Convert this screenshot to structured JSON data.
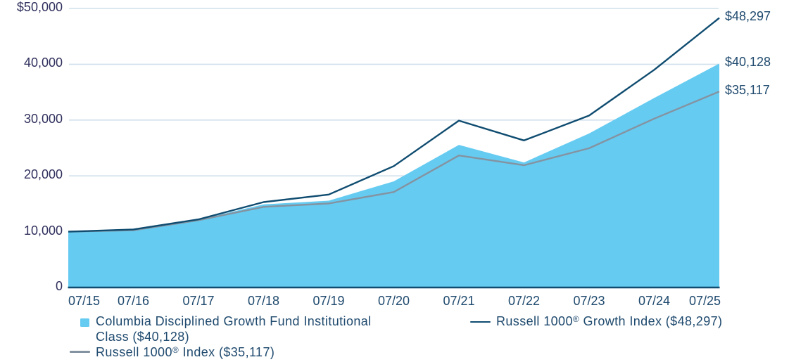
{
  "chart_data": {
    "type": "area",
    "categories": [
      "07/15",
      "07/16",
      "07/17",
      "07/18",
      "07/19",
      "07/20",
      "07/21",
      "07/22",
      "07/23",
      "07/24",
      "07/25"
    ],
    "series": [
      {
        "name": "Columbia Disciplined Growth Fund Institutional Class ($40,128)",
        "type": "area",
        "color": "#66cbf1",
        "end_label": "$40,128",
        "values": [
          10000,
          10300,
          12150,
          14900,
          15550,
          19020,
          25550,
          22400,
          27600,
          33950,
          40128
        ]
      },
      {
        "name": "Russell 1000® Growth Index ($48,297)",
        "type": "line",
        "color": "#0f4c70",
        "end_label": "$48,297",
        "values": [
          10000,
          10400,
          12200,
          15300,
          16650,
          21750,
          29900,
          26350,
          30800,
          39000,
          48297
        ]
      },
      {
        "name": "Russell 1000® Index ($35,117)",
        "type": "line",
        "color": "#8493a1",
        "end_label": "$35,117",
        "values": [
          10000,
          10250,
          12050,
          14450,
          15050,
          17100,
          23650,
          21900,
          24950,
          30250,
          35117
        ]
      }
    ],
    "y_axis": {
      "range": [
        0,
        50000
      ],
      "ticks": [
        {
          "value": 0,
          "label": "0"
        },
        {
          "value": 10000,
          "label": "10,000"
        },
        {
          "value": 20000,
          "label": "20,000"
        },
        {
          "value": 30000,
          "label": "30,000"
        },
        {
          "value": 40000,
          "label": "40,000"
        },
        {
          "value": 50000,
          "label": "$50,000"
        }
      ]
    },
    "grid": true,
    "legend_position": "bottom",
    "colors": {
      "gridline": "#d0e0ec",
      "axis_line": "#0f4c70",
      "y_label_text": "#30305e",
      "x_label_text": "#1f4a6e",
      "legend_text": "#1f4a6e",
      "background": "#ffffff"
    }
  }
}
